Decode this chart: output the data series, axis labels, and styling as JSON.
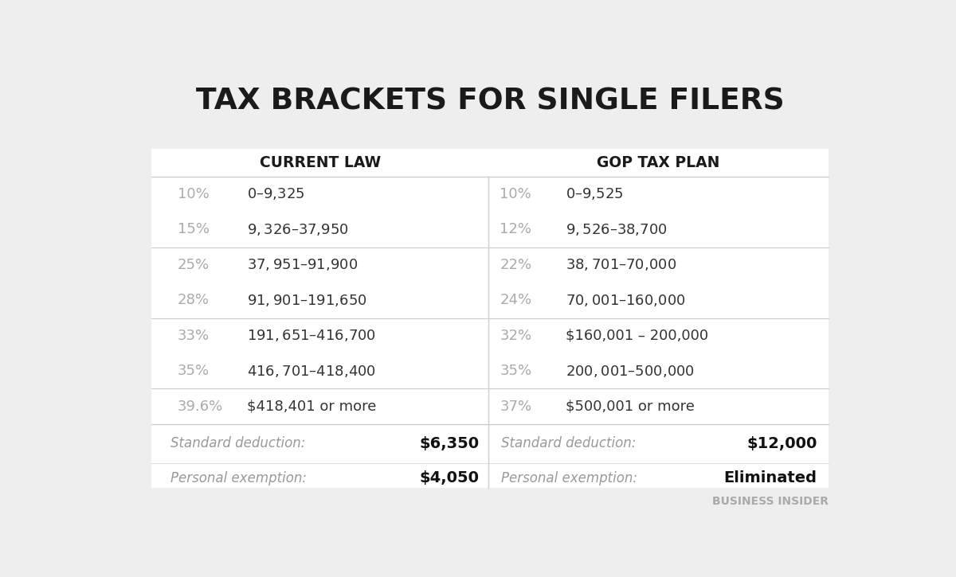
{
  "title": "TAX BRACKETS FOR SINGLE FILERS",
  "background_color": "#eeeeee",
  "col_header_left": "CURRENT LAW",
  "col_header_right": "GOP TAX PLAN",
  "current_law": [
    {
      "rate": "10%",
      "range": "$0 – $9,325"
    },
    {
      "rate": "15%",
      "range": "$9,326 – $37,950"
    },
    {
      "rate": "25%",
      "range": "$37,951 – $91,900"
    },
    {
      "rate": "28%",
      "range": "$91,901 – $191,650"
    },
    {
      "rate": "33%",
      "range": "$191,651 – $416,700"
    },
    {
      "rate": "35%",
      "range": "$416,701 – $418,400"
    },
    {
      "rate": "39.6%",
      "range": "$418,401 or more"
    }
  ],
  "gop_plan": [
    {
      "rate": "10%",
      "range": "$0 – $9,525"
    },
    {
      "rate": "12%",
      "range": "$9,526 – $38,700"
    },
    {
      "rate": "22%",
      "range": "$38,701 – $70,000"
    },
    {
      "rate": "24%",
      "range": "$70,001 – $160,000"
    },
    {
      "rate": "32%",
      "range": "$160,001 – 200,000"
    },
    {
      "rate": "35%",
      "range": "$200,001 – $500,000"
    },
    {
      "rate": "37%",
      "range": "$500,001 or more"
    }
  ],
  "current_law_deduction_label": "Standard deduction:",
  "current_law_deduction_value": "$6,350",
  "current_law_exemption_label": "Personal exemption:",
  "current_law_exemption_value": "$4,050",
  "gop_deduction_label": "Standard deduction:",
  "gop_deduction_value": "$12,000",
  "gop_exemption_label": "Personal exemption:",
  "gop_exemption_value": "Eliminated",
  "footer": "BUSINESS INSIDER",
  "rate_color": "#aaaaaa",
  "range_color": "#333333",
  "header_color": "#1a1a1a",
  "deduction_label_color": "#999999",
  "deduction_value_color": "#111111",
  "divider_color": "#cccccc",
  "vertical_divider_color": "#cccccc",
  "footer_color": "#aaaaaa"
}
